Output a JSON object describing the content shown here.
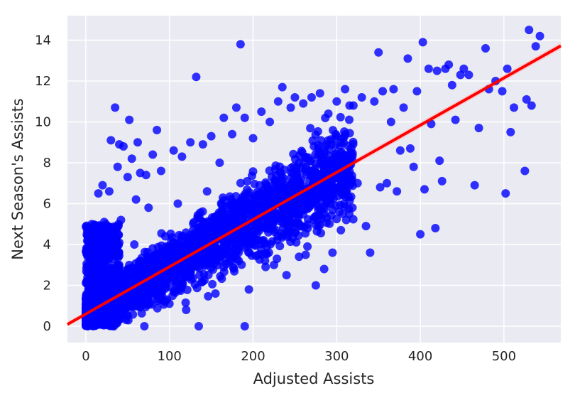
{
  "chart_data": {
    "type": "scatter",
    "title": "",
    "xlabel": "Adjusted Assists",
    "ylabel": "Next Season's Assists",
    "xlim": [
      -22,
      568
    ],
    "ylim": [
      -0.8,
      15.2
    ],
    "xticks": [
      0,
      100,
      200,
      300,
      400,
      500
    ],
    "yticks": [
      0,
      2,
      4,
      6,
      8,
      10,
      12,
      14
    ],
    "grid": true,
    "legend": "none",
    "colors": {
      "background": "#eaeaf2",
      "grid": "#ffffff",
      "points": "#0000ff",
      "fit_line": "#ff0000",
      "confidence_band": "#ffaaaa"
    },
    "regression_line": {
      "slope": 0.0231,
      "intercept": 0.6
    },
    "dense_cloud_description_values": {
      "note": "main cloud follows fit line; tail points listed individually"
    },
    "points": [
      [
        0,
        0.5
      ],
      [
        3,
        1.2
      ],
      [
        5,
        4.8
      ],
      [
        8,
        4.7
      ],
      [
        12,
        2.5
      ],
      [
        15,
        6.5
      ],
      [
        18,
        3.6
      ],
      [
        20,
        6.9
      ],
      [
        22,
        5.1
      ],
      [
        25,
        1.4
      ],
      [
        28,
        6.6
      ],
      [
        30,
        9.1
      ],
      [
        32,
        3.3
      ],
      [
        35,
        10.7
      ],
      [
        38,
        7.8
      ],
      [
        40,
        8.9
      ],
      [
        42,
        5.2
      ],
      [
        45,
        8.8
      ],
      [
        48,
        2.1
      ],
      [
        50,
        7.3
      ],
      [
        52,
        10.1
      ],
      [
        55,
        8.2
      ],
      [
        58,
        4.0
      ],
      [
        60,
        6.2
      ],
      [
        62,
        9.0
      ],
      [
        65,
        7.5
      ],
      [
        68,
        3.0
      ],
      [
        70,
        0.0
      ],
      [
        72,
        7.4
      ],
      [
        75,
        5.8
      ],
      [
        78,
        2.6
      ],
      [
        80,
        8.4
      ],
      [
        85,
        9.6
      ],
      [
        90,
        7.6
      ],
      [
        95,
        4.4
      ],
      [
        100,
        1.1
      ],
      [
        105,
        8.6
      ],
      [
        110,
        6.0
      ],
      [
        115,
        8.3
      ],
      [
        120,
        0.8
      ],
      [
        125,
        9.0
      ],
      [
        132,
        12.2
      ],
      [
        135,
        0.0
      ],
      [
        140,
        8.9
      ],
      [
        145,
        6.6
      ],
      [
        150,
        9.3
      ],
      [
        155,
        1.6
      ],
      [
        160,
        8.0
      ],
      [
        165,
        10.2
      ],
      [
        170,
        3.5
      ],
      [
        175,
        9.4
      ],
      [
        180,
        10.7
      ],
      [
        185,
        13.8
      ],
      [
        190,
        0.0
      ],
      [
        190,
        10.2
      ],
      [
        195,
        1.8
      ],
      [
        200,
        9.2
      ],
      [
        205,
        5.4
      ],
      [
        210,
        10.5
      ],
      [
        215,
        2.9
      ],
      [
        220,
        10.0
      ],
      [
        225,
        3.0
      ],
      [
        230,
        11.0
      ],
      [
        235,
        11.7
      ],
      [
        240,
        2.5
      ],
      [
        245,
        10.7
      ],
      [
        250,
        11.2
      ],
      [
        255,
        3.4
      ],
      [
        260,
        10.9
      ],
      [
        265,
        3.9
      ],
      [
        270,
        11.2
      ],
      [
        275,
        2.0
      ],
      [
        280,
        11.4
      ],
      [
        285,
        2.8
      ],
      [
        290,
        10.4
      ],
      [
        295,
        3.6
      ],
      [
        300,
        11.0
      ],
      [
        305,
        4.7
      ],
      [
        310,
        11.6
      ],
      [
        315,
        5.5
      ],
      [
        320,
        10.8
      ],
      [
        325,
        7.0
      ],
      [
        330,
        11.2
      ],
      [
        335,
        4.9
      ],
      [
        340,
        3.6
      ],
      [
        345,
        11.0
      ],
      [
        350,
        13.4
      ],
      [
        352,
        6.8
      ],
      [
        355,
        11.5
      ],
      [
        360,
        7.0
      ],
      [
        365,
        10.0
      ],
      [
        368,
        11.6
      ],
      [
        372,
        6.6
      ],
      [
        376,
        8.6
      ],
      [
        380,
        10.7
      ],
      [
        385,
        13.1
      ],
      [
        388,
        8.7
      ],
      [
        392,
        7.8
      ],
      [
        396,
        11.5
      ],
      [
        400,
        4.5
      ],
      [
        403,
        13.9
      ],
      [
        405,
        6.7
      ],
      [
        410,
        12.6
      ],
      [
        413,
        9.9
      ],
      [
        418,
        4.8
      ],
      [
        420,
        12.5
      ],
      [
        423,
        8.1
      ],
      [
        426,
        7.1
      ],
      [
        430,
        12.6
      ],
      [
        434,
        12.8
      ],
      [
        438,
        11.8
      ],
      [
        442,
        10.1
      ],
      [
        448,
        12.3
      ],
      [
        452,
        12.6
      ],
      [
        458,
        12.3
      ],
      [
        465,
        6.9
      ],
      [
        470,
        9.7
      ],
      [
        478,
        13.6
      ],
      [
        482,
        11.6
      ],
      [
        490,
        12.0
      ],
      [
        498,
        11.5
      ],
      [
        502,
        6.5
      ],
      [
        504,
        12.6
      ],
      [
        508,
        9.5
      ],
      [
        512,
        10.7
      ],
      [
        525,
        7.6
      ],
      [
        527,
        11.1
      ],
      [
        530,
        14.5
      ],
      [
        533,
        10.8
      ],
      [
        538,
        13.7
      ],
      [
        543,
        14.2
      ]
    ]
  }
}
